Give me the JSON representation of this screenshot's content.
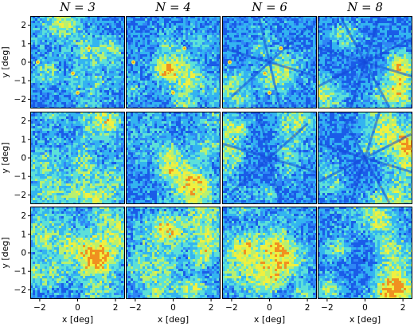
{
  "chart_data": {
    "type": "heatmap",
    "title": "",
    "column_titles": [
      "N = 3",
      "N = 4",
      "N = 6",
      "N = 8"
    ],
    "rows": 3,
    "xlabel": "x [deg]",
    "ylabel": "y [deg]",
    "xlim": [
      -2.5,
      2.5
    ],
    "ylim": [
      -2.5,
      2.5
    ],
    "xticks": [
      -2,
      0,
      2
    ],
    "yticks": [
      -2,
      -1,
      0,
      1,
      2
    ],
    "xtick_labels": [
      "−2",
      "0",
      "2"
    ],
    "ytick_labels": [
      "−2",
      "−1",
      "0",
      "1",
      "2"
    ],
    "colormap": [
      "#1030b0",
      "#1a5ce8",
      "#2f86f5",
      "#33b4f0",
      "#5ce0d8",
      "#b8f070",
      "#f0f040",
      "#f09020"
    ],
    "grid": false,
    "legend": "none"
  }
}
